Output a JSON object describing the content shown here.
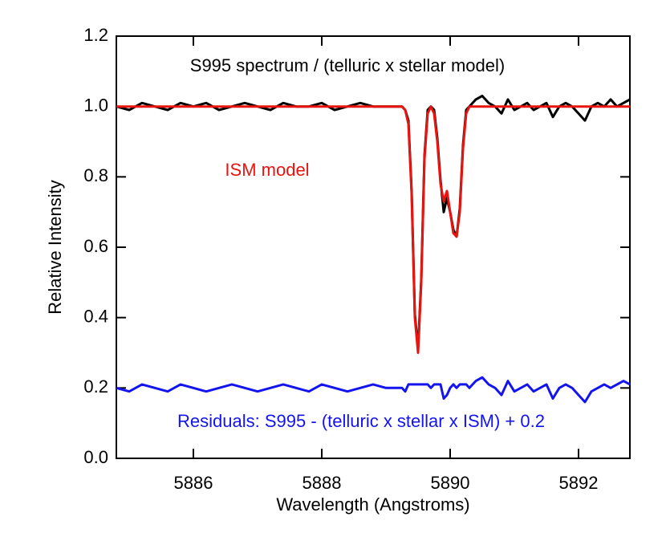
{
  "chart_data": {
    "type": "line",
    "title": "S995 spectrum / (telluric x stellar model)",
    "x_label": "Wavelength (Angstroms)",
    "y_label": "Relative Intensity",
    "annotations": [
      {
        "text": "ISM model",
        "color": "#e8140f"
      },
      {
        "text": "Residuals: S995 - (telluric x stellar x ISM) + 0.2",
        "color": "#1414ee"
      }
    ],
    "x": [
      5884.8,
      5885.0,
      5885.2,
      5885.4,
      5885.6,
      5885.8,
      5886.0,
      5886.2,
      5886.4,
      5886.6,
      5886.8,
      5887.0,
      5887.2,
      5887.4,
      5887.6,
      5887.8,
      5888.0,
      5888.2,
      5888.4,
      5888.6,
      5888.8,
      5889.0,
      5889.2,
      5889.25,
      5889.3,
      5889.35,
      5889.4,
      5889.45,
      5889.5,
      5889.55,
      5889.6,
      5889.65,
      5889.7,
      5889.75,
      5889.8,
      5889.85,
      5889.9,
      5889.95,
      5890.0,
      5890.05,
      5890.1,
      5890.15,
      5890.2,
      5890.25,
      5890.3,
      5890.35,
      5890.4,
      5890.5,
      5890.6,
      5890.7,
      5890.8,
      5890.9,
      5891.0,
      5891.1,
      5891.2,
      5891.3,
      5891.4,
      5891.5,
      5891.6,
      5891.7,
      5891.8,
      5891.9,
      5892.0,
      5892.1,
      5892.2,
      5892.3,
      5892.4,
      5892.5,
      5892.6,
      5892.7,
      5892.8
    ],
    "series": [
      {
        "color": "#000000",
        "values": [
          1.0,
          0.99,
          1.01,
          1.0,
          0.99,
          1.01,
          1.0,
          1.01,
          0.99,
          1.0,
          1.01,
          1.0,
          0.99,
          1.01,
          1.0,
          1.0,
          1.01,
          0.99,
          1.0,
          1.01,
          1.0,
          1.0,
          1.0,
          1.0,
          0.99,
          0.96,
          0.76,
          0.41,
          0.31,
          0.51,
          0.86,
          0.99,
          1.0,
          0.99,
          0.91,
          0.79,
          0.7,
          0.74,
          0.7,
          0.65,
          0.63,
          0.71,
          0.89,
          0.99,
          1.0,
          1.01,
          1.02,
          1.03,
          1.01,
          1.0,
          0.98,
          1.02,
          0.99,
          1.0,
          1.01,
          0.99,
          1.0,
          1.01,
          0.97,
          1.0,
          1.01,
          1.0,
          0.98,
          0.96,
          1.0,
          1.01,
          1.0,
          1.02,
          1.0,
          1.01,
          1.02
        ]
      },
      {
        "color": "#e8140f",
        "values": [
          1.0,
          1.0,
          1.0,
          1.0,
          1.0,
          1.0,
          1.0,
          1.0,
          1.0,
          1.0,
          1.0,
          1.0,
          1.0,
          1.0,
          1.0,
          1.0,
          1.0,
          1.0,
          1.0,
          1.0,
          1.0,
          1.0,
          1.0,
          1.0,
          0.99,
          0.95,
          0.75,
          0.4,
          0.3,
          0.5,
          0.85,
          0.98,
          1.0,
          0.98,
          0.9,
          0.78,
          0.73,
          0.76,
          0.7,
          0.64,
          0.63,
          0.7,
          0.88,
          0.98,
          1.0,
          1.0,
          1.0,
          1.0,
          1.0,
          1.0,
          1.0,
          1.0,
          1.0,
          1.0,
          1.0,
          1.0,
          1.0,
          1.0,
          1.0,
          1.0,
          1.0,
          1.0,
          1.0,
          1.0,
          1.0,
          1.0,
          1.0,
          1.0,
          1.0,
          1.0,
          1.0
        ]
      },
      {
        "color": "#1414ee",
        "values": [
          0.2,
          0.19,
          0.21,
          0.2,
          0.19,
          0.21,
          0.2,
          0.19,
          0.2,
          0.21,
          0.2,
          0.19,
          0.2,
          0.21,
          0.2,
          0.19,
          0.21,
          0.2,
          0.19,
          0.2,
          0.21,
          0.2,
          0.2,
          0.2,
          0.19,
          0.21,
          0.21,
          0.21,
          0.21,
          0.21,
          0.21,
          0.21,
          0.2,
          0.21,
          0.21,
          0.21,
          0.17,
          0.18,
          0.2,
          0.21,
          0.2,
          0.21,
          0.21,
          0.21,
          0.2,
          0.21,
          0.22,
          0.23,
          0.21,
          0.2,
          0.18,
          0.22,
          0.19,
          0.2,
          0.21,
          0.19,
          0.2,
          0.21,
          0.17,
          0.2,
          0.21,
          0.2,
          0.18,
          0.16,
          0.19,
          0.2,
          0.21,
          0.2,
          0.21,
          0.22,
          0.21
        ]
      }
    ],
    "xlim": [
      5884.8,
      5892.8
    ],
    "ylim": [
      0,
      1.2
    ],
    "xticks": [
      5886,
      5888,
      5890,
      5892
    ],
    "yticks": [
      {
        "value": 0,
        "label": "0.0"
      },
      0.2,
      0.4,
      0.6,
      0.8,
      {
        "value": 1,
        "label": "1.0"
      },
      1.2
    ]
  }
}
